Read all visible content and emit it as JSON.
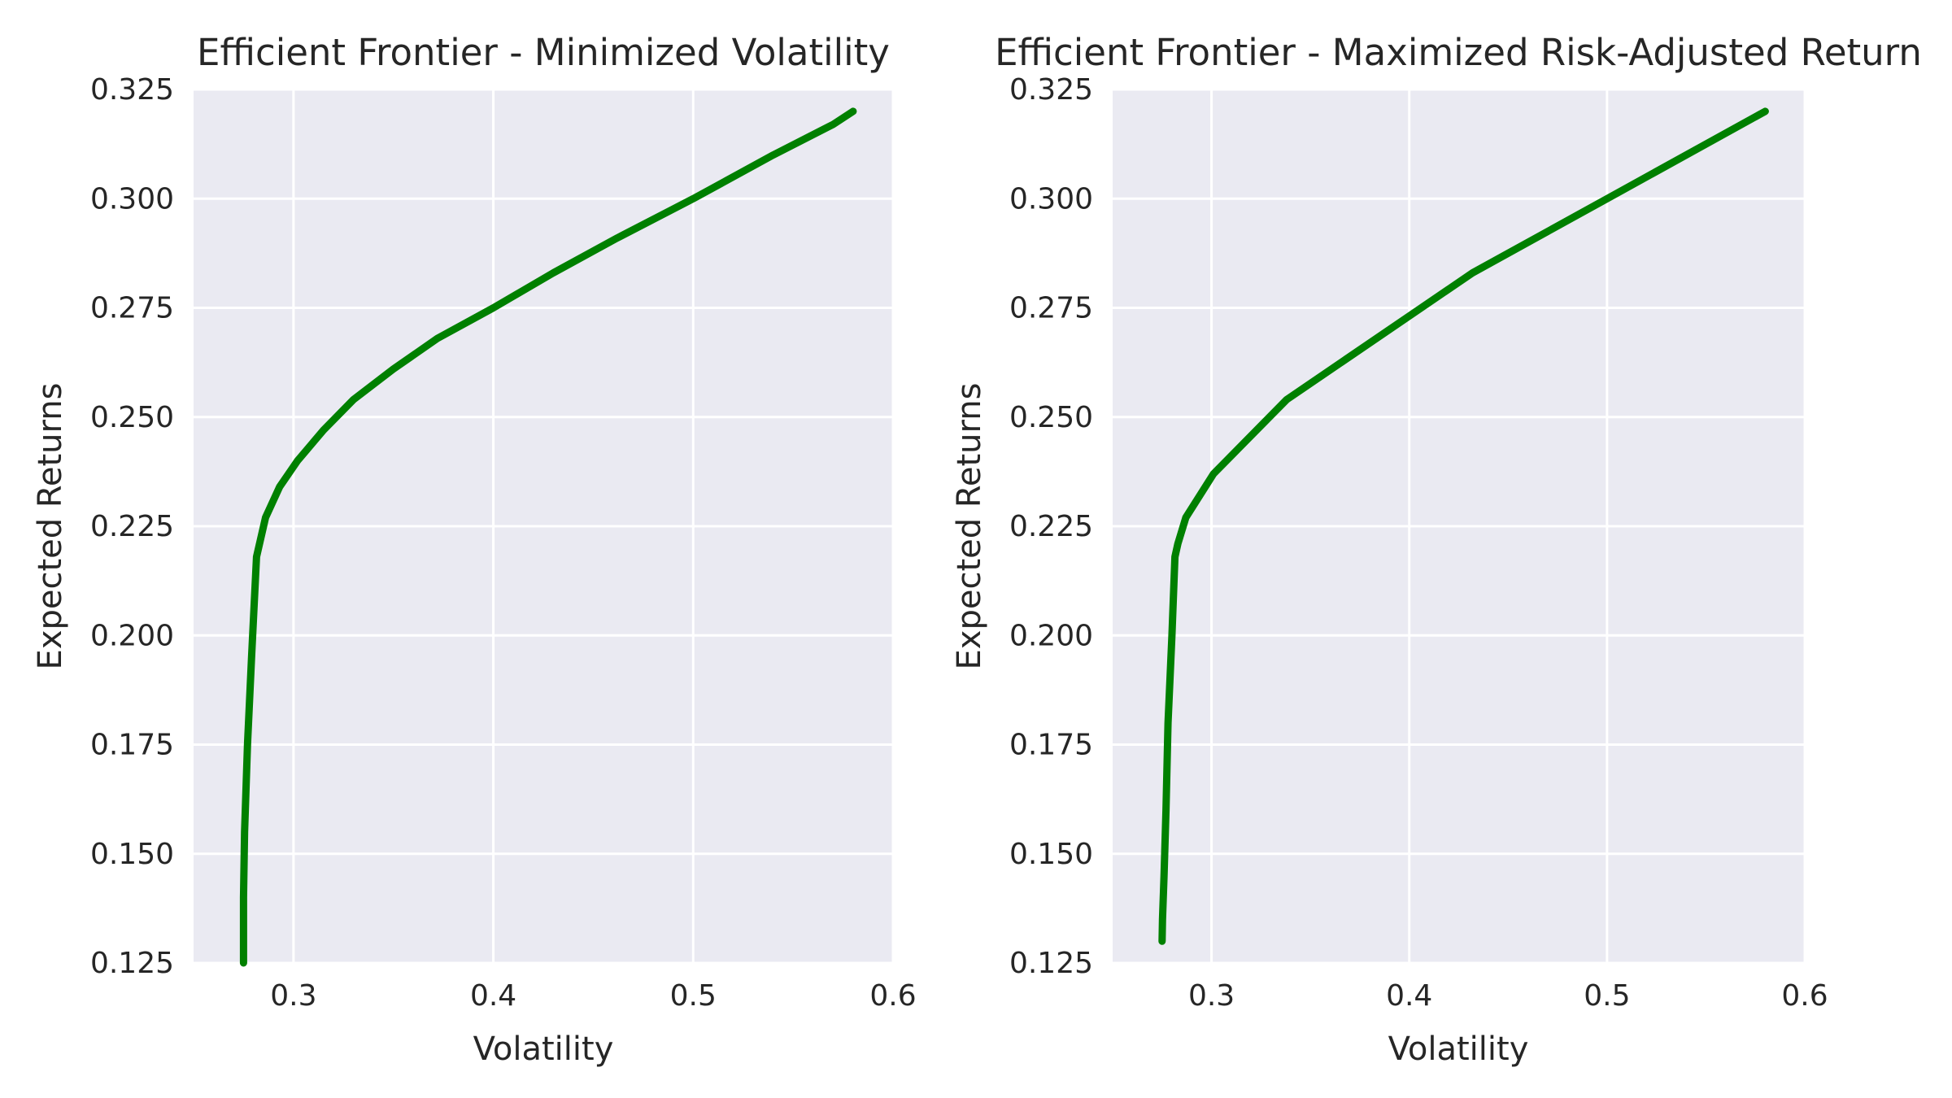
{
  "figure": {
    "background": "#ffffff",
    "plot_background": "#eaeaf2",
    "grid_color": "#ffffff",
    "line_color": "#008000"
  },
  "chart_data": [
    {
      "type": "line",
      "title": "Efficient Frontier - Minimized Volatility",
      "xlabel": "Volatility",
      "ylabel": "Expected Returns",
      "xlim": [
        0.25,
        0.6
      ],
      "ylim": [
        0.125,
        0.325
      ],
      "xticks": [
        0.3,
        0.4,
        0.5,
        0.6
      ],
      "xtick_labels": [
        "0.3",
        "0.4",
        "0.5",
        "0.6"
      ],
      "yticks": [
        0.125,
        0.15,
        0.175,
        0.2,
        0.225,
        0.25,
        0.275,
        0.3,
        0.325
      ],
      "ytick_labels": [
        "0.125",
        "0.150",
        "0.175",
        "0.200",
        "0.225",
        "0.250",
        "0.275",
        "0.300",
        "0.325"
      ],
      "grid": true,
      "series": [
        {
          "color": "#008000",
          "x": [
            0.275,
            0.275,
            0.2755,
            0.277,
            0.279,
            0.2815,
            0.286,
            0.293,
            0.302,
            0.315,
            0.33,
            0.35,
            0.372,
            0.4,
            0.43,
            0.462,
            0.5,
            0.54,
            0.57,
            0.58
          ],
          "y": [
            0.125,
            0.14,
            0.155,
            0.175,
            0.195,
            0.218,
            0.227,
            0.234,
            0.24,
            0.247,
            0.254,
            0.261,
            0.268,
            0.275,
            0.283,
            0.291,
            0.3,
            0.31,
            0.317,
            0.32
          ]
        }
      ]
    },
    {
      "type": "line",
      "title": "Efficient Frontier - Maximized Risk-Adjusted Return",
      "xlabel": "Volatility",
      "ylabel": "Expected Returns",
      "xlim": [
        0.25,
        0.6
      ],
      "ylim": [
        0.125,
        0.325
      ],
      "xticks": [
        0.3,
        0.4,
        0.5,
        0.6
      ],
      "xtick_labels": [
        "0.3",
        "0.4",
        "0.5",
        "0.6"
      ],
      "yticks": [
        0.125,
        0.15,
        0.175,
        0.2,
        0.225,
        0.25,
        0.275,
        0.3,
        0.325
      ],
      "ytick_labels": [
        "0.125",
        "0.150",
        "0.175",
        "0.200",
        "0.225",
        "0.250",
        "0.275",
        "0.300",
        "0.325"
      ],
      "grid": true,
      "series": [
        {
          "color": "#008000",
          "x": [
            0.275,
            0.2752,
            0.276,
            0.277,
            0.278,
            0.28,
            0.2815,
            0.283,
            0.287,
            0.301,
            0.338,
            0.432,
            0.5,
            0.58
          ],
          "y": [
            0.13,
            0.135,
            0.145,
            0.16,
            0.18,
            0.2,
            0.218,
            0.221,
            0.227,
            0.237,
            0.254,
            0.283,
            0.3,
            0.32
          ]
        }
      ]
    }
  ]
}
